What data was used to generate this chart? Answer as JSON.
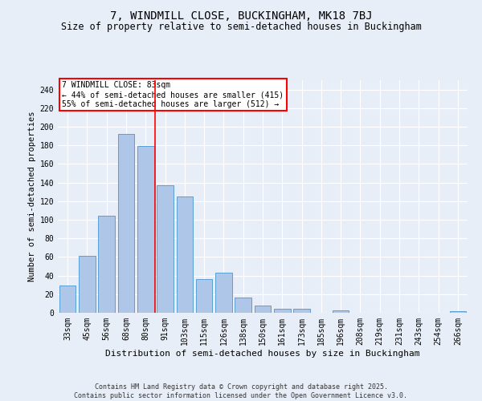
{
  "title": "7, WINDMILL CLOSE, BUCKINGHAM, MK18 7BJ",
  "subtitle": "Size of property relative to semi-detached houses in Buckingham",
  "xlabel": "Distribution of semi-detached houses by size in Buckingham",
  "ylabel": "Number of semi-detached properties",
  "categories": [
    "33sqm",
    "45sqm",
    "56sqm",
    "68sqm",
    "80sqm",
    "91sqm",
    "103sqm",
    "115sqm",
    "126sqm",
    "138sqm",
    "150sqm",
    "161sqm",
    "173sqm",
    "185sqm",
    "196sqm",
    "208sqm",
    "219sqm",
    "231sqm",
    "243sqm",
    "254sqm",
    "266sqm"
  ],
  "values": [
    29,
    61,
    104,
    192,
    179,
    137,
    125,
    36,
    43,
    16,
    8,
    4,
    4,
    0,
    3,
    0,
    0,
    0,
    0,
    0,
    2
  ],
  "bar_color": "#aec6e8",
  "bar_edge_color": "#5a9fd4",
  "background_color": "#e8eef8",
  "grid_color": "#ffffff",
  "vline_x_index": 4,
  "vline_color": "red",
  "annotation_text": "7 WINDMILL CLOSE: 83sqm\n← 44% of semi-detached houses are smaller (415)\n55% of semi-detached houses are larger (512) →",
  "annotation_box_color": "white",
  "annotation_box_edge_color": "red",
  "footer": "Contains HM Land Registry data © Crown copyright and database right 2025.\nContains public sector information licensed under the Open Government Licence v3.0.",
  "ylim": [
    0,
    250
  ],
  "yticks": [
    0,
    20,
    40,
    60,
    80,
    100,
    120,
    140,
    160,
    180,
    200,
    220,
    240
  ],
  "title_fontsize": 10,
  "subtitle_fontsize": 8.5,
  "ylabel_fontsize": 7.5,
  "xlabel_fontsize": 8,
  "tick_fontsize": 7,
  "annotation_fontsize": 7,
  "footer_fontsize": 6
}
